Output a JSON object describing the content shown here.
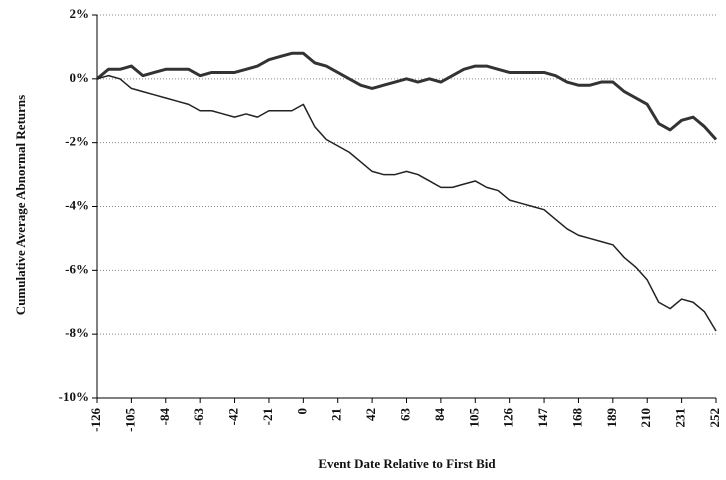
{
  "chart_data": {
    "type": "line",
    "xlabel": "Event Date Relative to First Bid",
    "ylabel": "Cumulative Average Abnormal Returns",
    "x": [
      -126,
      -119,
      -112,
      -105,
      -98,
      -91,
      -84,
      -77,
      -70,
      -63,
      -56,
      -49,
      -42,
      -35,
      -28,
      -21,
      -14,
      -7,
      0,
      7,
      14,
      21,
      28,
      35,
      42,
      49,
      56,
      63,
      70,
      77,
      84,
      91,
      98,
      105,
      112,
      119,
      126,
      133,
      140,
      147,
      154,
      161,
      168,
      175,
      182,
      189,
      196,
      203,
      210,
      217,
      224,
      231,
      238,
      245,
      252
    ],
    "series": [
      {
        "color": "#333333",
        "width": 3,
        "values": [
          0,
          0.3,
          0.3,
          0.4,
          0.1,
          0.2,
          0.3,
          0.3,
          0.3,
          0.1,
          0.2,
          0.2,
          0.2,
          0.3,
          0.4,
          0.6,
          0.7,
          0.8,
          0.8,
          0.5,
          0.4,
          0.2,
          0,
          -0.2,
          -0.3,
          -0.2,
          -0.1,
          0,
          -0.1,
          0,
          -0.1,
          0.1,
          0.3,
          0.4,
          0.4,
          0.3,
          0.2,
          0.2,
          0.2,
          0.2,
          0.1,
          -0.1,
          -0.2,
          -0.2,
          -0.1,
          -0.1,
          -0.4,
          -0.6,
          -0.8,
          -1.4,
          -1.6,
          -1.3,
          -1.2,
          -1.5,
          -1.9
        ]
      },
      {
        "color": "#222222",
        "width": 1.5,
        "values": [
          0,
          0.1,
          0,
          -0.3,
          -0.4,
          -0.5,
          -0.6,
          -0.7,
          -0.8,
          -1.0,
          -1.0,
          -1.1,
          -1.2,
          -1.1,
          -1.2,
          -1.0,
          -1.0,
          -1.0,
          -0.8,
          -1.5,
          -1.9,
          -2.1,
          -2.3,
          -2.6,
          -2.9,
          -3.0,
          -3.0,
          -2.9,
          -3.0,
          -3.2,
          -3.4,
          -3.4,
          -3.3,
          -3.2,
          -3.4,
          -3.5,
          -3.8,
          -3.9,
          -4.0,
          -4.1,
          -4.4,
          -4.7,
          -4.9,
          -5.0,
          -5.1,
          -5.2,
          -5.6,
          -5.9,
          -6.3,
          -7.0,
          -7.2,
          -6.9,
          -7.0,
          -7.3,
          -7.9
        ]
      }
    ],
    "xlim": [
      -126,
      252
    ],
    "xticks": [
      -126,
      -105,
      -84,
      -63,
      -42,
      -21,
      0,
      21,
      42,
      63,
      84,
      105,
      126,
      147,
      168,
      189,
      210,
      231,
      252
    ],
    "ylim": [
      -10,
      2
    ],
    "yticks": [
      {
        "value": -10,
        "label": "-10%"
      },
      {
        "value": -8,
        "label": "-8%"
      },
      {
        "value": -6,
        "label": "-6%"
      },
      {
        "value": -4,
        "label": "-4%"
      },
      {
        "value": -2,
        "label": "-2%"
      },
      {
        "value": 0,
        "label": "0%"
      },
      {
        "value": 2,
        "label": "2%"
      }
    ],
    "grid": true
  }
}
